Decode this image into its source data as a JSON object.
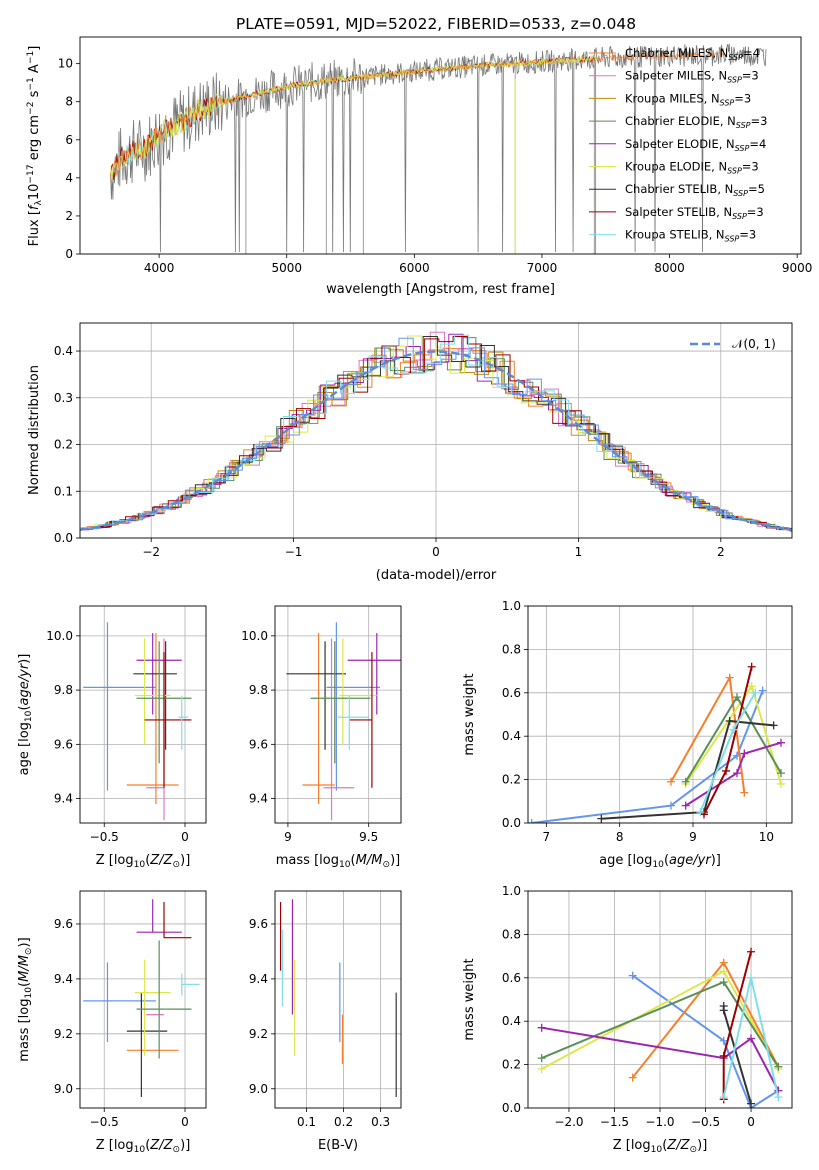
{
  "figure": {
    "title": "PLATE=0591, MJD=52022, FIBERID=0533, z=0.048"
  },
  "colors": [
    "#f77f2a",
    "#e377c2",
    "#c08b0a",
    "#5a8f5a",
    "#9b27b0",
    "#dce84a",
    "#333333",
    "#990000",
    "#7fdfe8",
    "#6495ed",
    "#1e1e1e",
    "#777777"
  ],
  "chart_data": [
    {
      "id": "spectrum",
      "type": "line",
      "xlabel": "wavelength [Angstrom, rest frame]",
      "ylabel": "Flux [f_λ10^-17 erg cm^-2 s^-1 A^-1]",
      "xlim": [
        3380,
        9030
      ],
      "ylim": [
        0,
        11.4
      ],
      "xticks": [
        4000,
        5000,
        6000,
        7000,
        8000,
        9000
      ],
      "yticks": [
        0,
        2,
        4,
        6,
        8,
        10
      ],
      "data_color": "#777777",
      "data_range": [
        3620,
        8760
      ],
      "continuum": [
        [
          3620,
          4.2
        ],
        [
          3700,
          5.0
        ],
        [
          3800,
          5.4
        ],
        [
          3900,
          5.6
        ],
        [
          4000,
          6.3
        ],
        [
          4100,
          6.7
        ],
        [
          4200,
          7.0
        ],
        [
          4300,
          7.5
        ],
        [
          4500,
          8.0
        ],
        [
          4700,
          8.3
        ],
        [
          5000,
          8.8
        ],
        [
          5300,
          9.1
        ],
        [
          5600,
          9.3
        ],
        [
          6000,
          9.6
        ],
        [
          6500,
          9.9
        ],
        [
          7000,
          10.1
        ],
        [
          7500,
          10.3
        ],
        [
          8000,
          10.4
        ],
        [
          8500,
          10.5
        ],
        [
          8760,
          10.4
        ]
      ],
      "model_range": [
        3620,
        7420
      ],
      "legend": [
        {
          "label": "Chabrier MILES, N",
          "sub": "SSP",
          "suffix": "=4",
          "color": "#f77f2a"
        },
        {
          "label": "Salpeter MILES, N",
          "sub": "SSP",
          "suffix": "=3",
          "color": "#e377c2"
        },
        {
          "label": "Kroupa MILES, N",
          "sub": "SSP",
          "suffix": "=3",
          "color": "#c08b0a"
        },
        {
          "label": "Chabrier ELODIE, N",
          "sub": "SSP",
          "suffix": "=3",
          "color": "#5a8f5a"
        },
        {
          "label": "Salpeter ELODIE, N",
          "sub": "SSP",
          "suffix": "=4",
          "color": "#9b27b0"
        },
        {
          "label": "Kroupa ELODIE, N",
          "sub": "SSP",
          "suffix": "=3",
          "color": "#dce84a"
        },
        {
          "label": "Chabrier STELIB, N",
          "sub": "SSP",
          "suffix": "=5",
          "color": "#333333"
        },
        {
          "label": "Salpeter STELIB, N",
          "sub": "SSP",
          "suffix": "=3",
          "color": "#990000"
        },
        {
          "label": "Kroupa STELIB, N",
          "sub": "SSP",
          "suffix": "=3",
          "color": "#7fdfe8"
        }
      ]
    },
    {
      "id": "residuals",
      "type": "line",
      "xlabel": "(data-model)/error",
      "ylabel": "Normed distribution",
      "xlim": [
        -2.5,
        2.5
      ],
      "ylim": [
        0,
        0.46
      ],
      "xticks": [
        -2,
        -1,
        0,
        1,
        2
      ],
      "yticks": [
        0.0,
        0.1,
        0.2,
        0.3,
        0.4
      ],
      "grid": true,
      "legend": "𝒩(0, 1)",
      "gaussian_color": "#5b8bd6"
    },
    {
      "id": "age_vs_Z",
      "type": "scatter",
      "xlabel": "Z [log10(Z/Z☉)]",
      "ylabel": "age [log10(age/yr)]",
      "xlim": [
        -0.65,
        0.13
      ],
      "ylim": [
        9.31,
        10.11
      ],
      "xticks": [
        -0.5,
        0.0
      ],
      "yticks": [
        9.4,
        9.6,
        9.8,
        10.0
      ],
      "grid": true,
      "points": [
        {
          "x": -0.48,
          "y": 9.81,
          "xerr": [
            0.15,
            0.3
          ],
          "yerr": [
            0.38,
            0.24
          ],
          "color": "#6495ed"
        },
        {
          "x": -0.18,
          "y": 9.45,
          "xerr": [
            0.18,
            0.14
          ],
          "yerr": [
            0.07,
            0.56
          ],
          "color": "#f77f2a"
        },
        {
          "x": -0.13,
          "y": 9.44,
          "xerr": [
            0.11,
            0.0
          ],
          "yerr": [
            0.12,
            0.55
          ],
          "color": "#e377c2"
        },
        {
          "x": -0.2,
          "y": 9.91,
          "xerr": [
            0.1,
            0.18
          ],
          "yerr": [
            0.2,
            0.1
          ],
          "color": "#9b27b0"
        },
        {
          "x": -0.12,
          "y": 9.86,
          "xerr": [
            0.2,
            0.07
          ],
          "yerr": [
            0.28,
            0.12
          ],
          "color": "#333333"
        },
        {
          "x": -0.25,
          "y": 9.78,
          "xerr": [
            0.06,
            0.16
          ],
          "yerr": [
            0.18,
            0.21
          ],
          "color": "#dce84a"
        },
        {
          "x": -0.16,
          "y": 9.77,
          "xerr": [
            0.14,
            0.2
          ],
          "yerr": [
            0.24,
            0.21
          ],
          "color": "#5a8f5a"
        },
        {
          "x": -0.13,
          "y": 9.69,
          "xerr": [
            0.12,
            0.17
          ],
          "yerr": [
            0.25,
            0.25
          ],
          "color": "#990000"
        },
        {
          "x": -0.02,
          "y": 9.7,
          "xerr": [
            0.02,
            0.04
          ],
          "yerr": [
            0.12,
            0.08
          ],
          "color": "#7fdfe8"
        }
      ]
    },
    {
      "id": "age_vs_mass",
      "type": "scatter",
      "xlabel": "mass [log10(M/M☉)]",
      "ylabel": "",
      "xlim": [
        8.92,
        9.7
      ],
      "ylim": [
        9.31,
        10.11
      ],
      "xticks": [
        9.0,
        9.5
      ],
      "yticks": [
        9.4,
        9.6,
        9.8,
        10.0
      ],
      "grid": true,
      "points": [
        {
          "x": 9.3,
          "y": 9.81,
          "xerr": [
            0.06,
            0.27
          ],
          "yerr": [
            0.38,
            0.24
          ],
          "color": "#6495ed"
        },
        {
          "x": 9.19,
          "y": 9.45,
          "xerr": [
            0.1,
            0.1
          ],
          "yerr": [
            0.07,
            0.56
          ],
          "color": "#f77f2a"
        },
        {
          "x": 9.27,
          "y": 9.44,
          "xerr": [
            0.05,
            0.14
          ],
          "yerr": [
            0.12,
            0.55
          ],
          "color": "#e377c2"
        },
        {
          "x": 9.55,
          "y": 9.91,
          "xerr": [
            0.18,
            0.16
          ],
          "yerr": [
            0.2,
            0.1
          ],
          "color": "#9b27b0"
        },
        {
          "x": 9.23,
          "y": 9.86,
          "xerr": [
            0.24,
            0.13
          ],
          "yerr": [
            0.28,
            0.12
          ],
          "color": "#333333"
        },
        {
          "x": 9.34,
          "y": 9.78,
          "xerr": [
            0.02,
            0.21
          ],
          "yerr": [
            0.18,
            0.21
          ],
          "color": "#dce84a"
        },
        {
          "x": 9.29,
          "y": 9.77,
          "xerr": [
            0.15,
            0.22
          ],
          "yerr": [
            0.24,
            0.21
          ],
          "color": "#5a8f5a"
        },
        {
          "x": 9.52,
          "y": 9.69,
          "xerr": [
            0.14,
            0.0
          ],
          "yerr": [
            0.25,
            0.25
          ],
          "color": "#990000"
        },
        {
          "x": 9.38,
          "y": 9.7,
          "xerr": [
            0.07,
            0.12
          ],
          "yerr": [
            0.12,
            0.08
          ],
          "color": "#7fdfe8"
        }
      ]
    },
    {
      "id": "mass_weight_vs_age",
      "type": "line",
      "xlabel": "age [log10(age/yr)]",
      "ylabel": "mass weight",
      "xlim": [
        6.75,
        10.35
      ],
      "ylim": [
        0,
        1
      ],
      "xticks": [
        7,
        8,
        9,
        10
      ],
      "yticks": [
        0.0,
        0.2,
        0.4,
        0.6,
        0.8,
        1.0
      ],
      "grid": true,
      "series": [
        {
          "color": "#6495ed",
          "x": [
            6.8,
            8.7,
            9.6,
            9.95
          ],
          "y": [
            0.0,
            0.08,
            0.31,
            0.61
          ]
        },
        {
          "color": "#f77f2a",
          "x": [
            8.7,
            9.5,
            9.7
          ],
          "y": [
            0.19,
            0.67,
            0.14
          ]
        },
        {
          "color": "#dce84a",
          "x": [
            8.9,
            9.8,
            10.2
          ],
          "y": [
            0.18,
            0.63,
            0.18
          ]
        },
        {
          "color": "#5a8f5a",
          "x": [
            8.9,
            9.6,
            10.2
          ],
          "y": [
            0.19,
            0.58,
            0.23
          ]
        },
        {
          "color": "#9b27b0",
          "x": [
            8.9,
            9.6,
            9.7,
            10.2
          ],
          "y": [
            0.08,
            0.23,
            0.32,
            0.37
          ]
        },
        {
          "color": "#333333",
          "x": [
            7.75,
            9.15,
            9.5,
            10.1
          ],
          "y": [
            0.02,
            0.05,
            0.47,
            0.45
          ]
        },
        {
          "color": "#990000",
          "x": [
            9.15,
            9.45,
            9.8
          ],
          "y": [
            0.04,
            0.24,
            0.72
          ]
        },
        {
          "color": "#7fdfe8",
          "x": [
            9.1,
            9.55,
            9.85
          ],
          "y": [
            0.05,
            0.43,
            0.6
          ]
        }
      ]
    },
    {
      "id": "mass_vs_Z",
      "type": "scatter",
      "xlabel": "Z [log10(Z/Z☉)]",
      "ylabel": "mass [log10(M/M☉)]",
      "xlim": [
        -0.65,
        0.13
      ],
      "ylim": [
        8.93,
        9.72
      ],
      "xticks": [
        -0.5,
        0.0
      ],
      "yticks": [
        9.0,
        9.2,
        9.4,
        9.6
      ],
      "grid": true,
      "points": [
        {
          "x": -0.48,
          "y": 9.32,
          "xerr": [
            0.15,
            0.3
          ],
          "yerr": [
            0.15,
            0.14
          ],
          "color": "#6495ed"
        },
        {
          "x": -0.18,
          "y": 9.14,
          "xerr": [
            0.18,
            0.14
          ],
          "yerr": [
            0.0,
            0.0
          ],
          "color": "#f77f2a"
        },
        {
          "x": -0.13,
          "y": 9.27,
          "xerr": [
            0.11,
            0.0
          ],
          "yerr": [
            0.0,
            0.0
          ],
          "color": "#e377c2"
        },
        {
          "x": -0.2,
          "y": 9.57,
          "xerr": [
            0.1,
            0.18
          ],
          "yerr": [
            0.0,
            0.12
          ],
          "color": "#9b27b0"
        },
        {
          "x": -0.27,
          "y": 9.21,
          "xerr": [
            0.09,
            0.16
          ],
          "yerr": [
            0.24,
            0.14
          ],
          "color": "#333333"
        },
        {
          "x": -0.25,
          "y": 9.35,
          "xerr": [
            0.06,
            0.16
          ],
          "yerr": [
            0.23,
            0.12
          ],
          "color": "#dce84a"
        },
        {
          "x": -0.16,
          "y": 9.29,
          "xerr": [
            0.14,
            0.2
          ],
          "yerr": [
            0.18,
            0.25
          ],
          "color": "#5a8f5a"
        },
        {
          "x": -0.13,
          "y": 9.55,
          "xerr": [
            0.0,
            0.17
          ],
          "yerr": [
            0.0,
            0.13
          ],
          "color": "#990000"
        },
        {
          "x": -0.02,
          "y": 9.38,
          "xerr": [
            0.0,
            0.11
          ],
          "yerr": [
            0.04,
            0.04
          ],
          "color": "#7fdfe8"
        }
      ]
    },
    {
      "id": "mass_vs_ebv",
      "type": "scatter",
      "xlabel": "E(B-V)",
      "ylabel": "",
      "xlim": [
        0.015,
        0.355
      ],
      "ylim": [
        8.93,
        9.72
      ],
      "xticks": [
        0.1,
        0.2,
        0.3
      ],
      "yticks": [
        9.0,
        9.2,
        9.4,
        9.6
      ],
      "grid": true,
      "points": [
        {
          "x": 0.03,
          "y": 9.55,
          "yerr": [
            0.12,
            0.13
          ],
          "color": "#990000"
        },
        {
          "x": 0.035,
          "y": 9.4,
          "yerr": [
            0.1,
            0.18
          ],
          "color": "#7fdfe8"
        },
        {
          "x": 0.062,
          "y": 9.57,
          "yerr": [
            0.3,
            0.12
          ],
          "color": "#9b27b0"
        },
        {
          "x": 0.068,
          "y": 9.35,
          "yerr": [
            0.23,
            0.12
          ],
          "color": "#dce84a"
        },
        {
          "x": 0.19,
          "y": 9.32,
          "yerr": [
            0.15,
            0.14
          ],
          "color": "#6495ed"
        },
        {
          "x": 0.197,
          "y": 9.27,
          "yerr": [
            0.18,
            0.0
          ],
          "color": "#f77f2a"
        },
        {
          "x": 0.342,
          "y": 9.21,
          "yerr": [
            0.24,
            0.14
          ],
          "color": "#333333"
        }
      ]
    },
    {
      "id": "mass_weight_vs_Z",
      "type": "line",
      "xlabel": "Z [log10(Z/Z☉)]",
      "ylabel": "mass weight",
      "xlim": [
        -2.45,
        0.45
      ],
      "ylim": [
        0,
        1
      ],
      "xticks": [
        -2.0,
        -1.5,
        -1.0,
        -0.5,
        0.0
      ],
      "yticks": [
        0.0,
        0.2,
        0.4,
        0.6,
        0.8,
        1.0
      ],
      "grid": true,
      "series": [
        {
          "color": "#6495ed",
          "x": [
            -1.3,
            -0.3,
            0.0,
            0.3
          ],
          "y": [
            0.61,
            0.31,
            0.0,
            0.08
          ]
        },
        {
          "color": "#f77f2a",
          "x": [
            -1.3,
            -0.3,
            0.3
          ],
          "y": [
            0.14,
            0.67,
            0.19
          ]
        },
        {
          "color": "#dce84a",
          "x": [
            -2.3,
            -0.3,
            0.3
          ],
          "y": [
            0.18,
            0.63,
            0.18
          ]
        },
        {
          "color": "#5a8f5a",
          "x": [
            -2.3,
            -0.3,
            0.3
          ],
          "y": [
            0.23,
            0.58,
            0.19
          ]
        },
        {
          "color": "#9b27b0",
          "x": [
            -2.3,
            -0.3,
            0.0,
            0.3
          ],
          "y": [
            0.37,
            0.23,
            0.32,
            0.08
          ]
        },
        {
          "color": "#333333",
          "x": [
            -0.3,
            -0.3,
            0.0
          ],
          "y": [
            0.47,
            0.45,
            0.02
          ]
        },
        {
          "color": "#990000",
          "x": [
            -0.3,
            -0.3,
            0.0
          ],
          "y": [
            0.04,
            0.24,
            0.72
          ]
        },
        {
          "color": "#7fdfe8",
          "x": [
            -0.3,
            0.0,
            0.3
          ],
          "y": [
            0.05,
            0.6,
            0.05
          ]
        }
      ]
    }
  ]
}
